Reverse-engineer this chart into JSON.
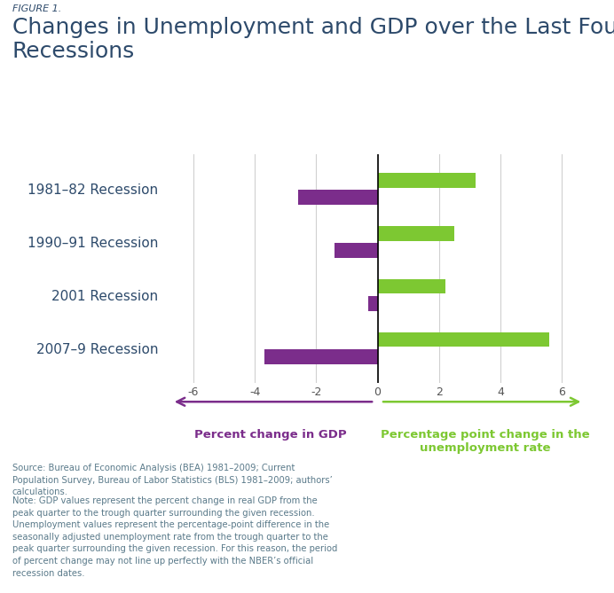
{
  "figure_label": "FIGURE 1.",
  "title": "Changes in Unemployment and GDP over the Last Four\nRecessions",
  "title_color": "#2d4a6b",
  "title_fontsize": 18,
  "figure_label_fontsize": 8,
  "figure_label_color": "#2d4a6b",
  "recessions": [
    "2007–9 Recession",
    "2001 Recession",
    "1990–91 Recession",
    "1981–82 Recession"
  ],
  "gdp_values": [
    -3.7,
    -0.3,
    -1.4,
    -2.6
  ],
  "unemp_values": [
    5.6,
    2.2,
    2.5,
    3.2
  ],
  "gdp_color": "#7b2d8b",
  "unemp_color": "#7dc832",
  "xlim": [
    -7,
    7
  ],
  "xticks": [
    -6,
    -4,
    -2,
    0,
    2,
    4,
    6
  ],
  "bar_height": 0.28,
  "bar_gap": 0.04,
  "background_color": "#ffffff",
  "axis_label_gdp": "Percent change in GDP",
  "axis_label_unemp": "Percentage point change in the\nunemployment rate",
  "axis_label_gdp_color": "#7b2d8b",
  "axis_label_unemp_color": "#7dc832",
  "source_text": "Source: Bureau of Economic Analysis (BEA) 1981–2009; Current\nPopulation Survey, Bureau of Labor Statistics (BLS) 1981–2009; authors’\ncalculations.",
  "note_text": "Note: GDP values represent the percent change in real GDP from the\npeak quarter to the trough quarter surrounding the given recession.\nUnemployment values represent the percentage-point difference in the\nseasonally adjusted unemployment rate from the trough quarter to the\npeak quarter surrounding the given recession. For this reason, the period\nof percent change may not line up perfectly with the NBER’s official\nrecession dates.",
  "footnote_color": "#5a7a8a",
  "footnote_fontsize": 7.2,
  "gridline_color": "#d0d0d0",
  "tick_color": "#555555",
  "tick_fontsize": 9,
  "ylabel_fontsize": 11,
  "ylabel_color": "#2d4a6b"
}
